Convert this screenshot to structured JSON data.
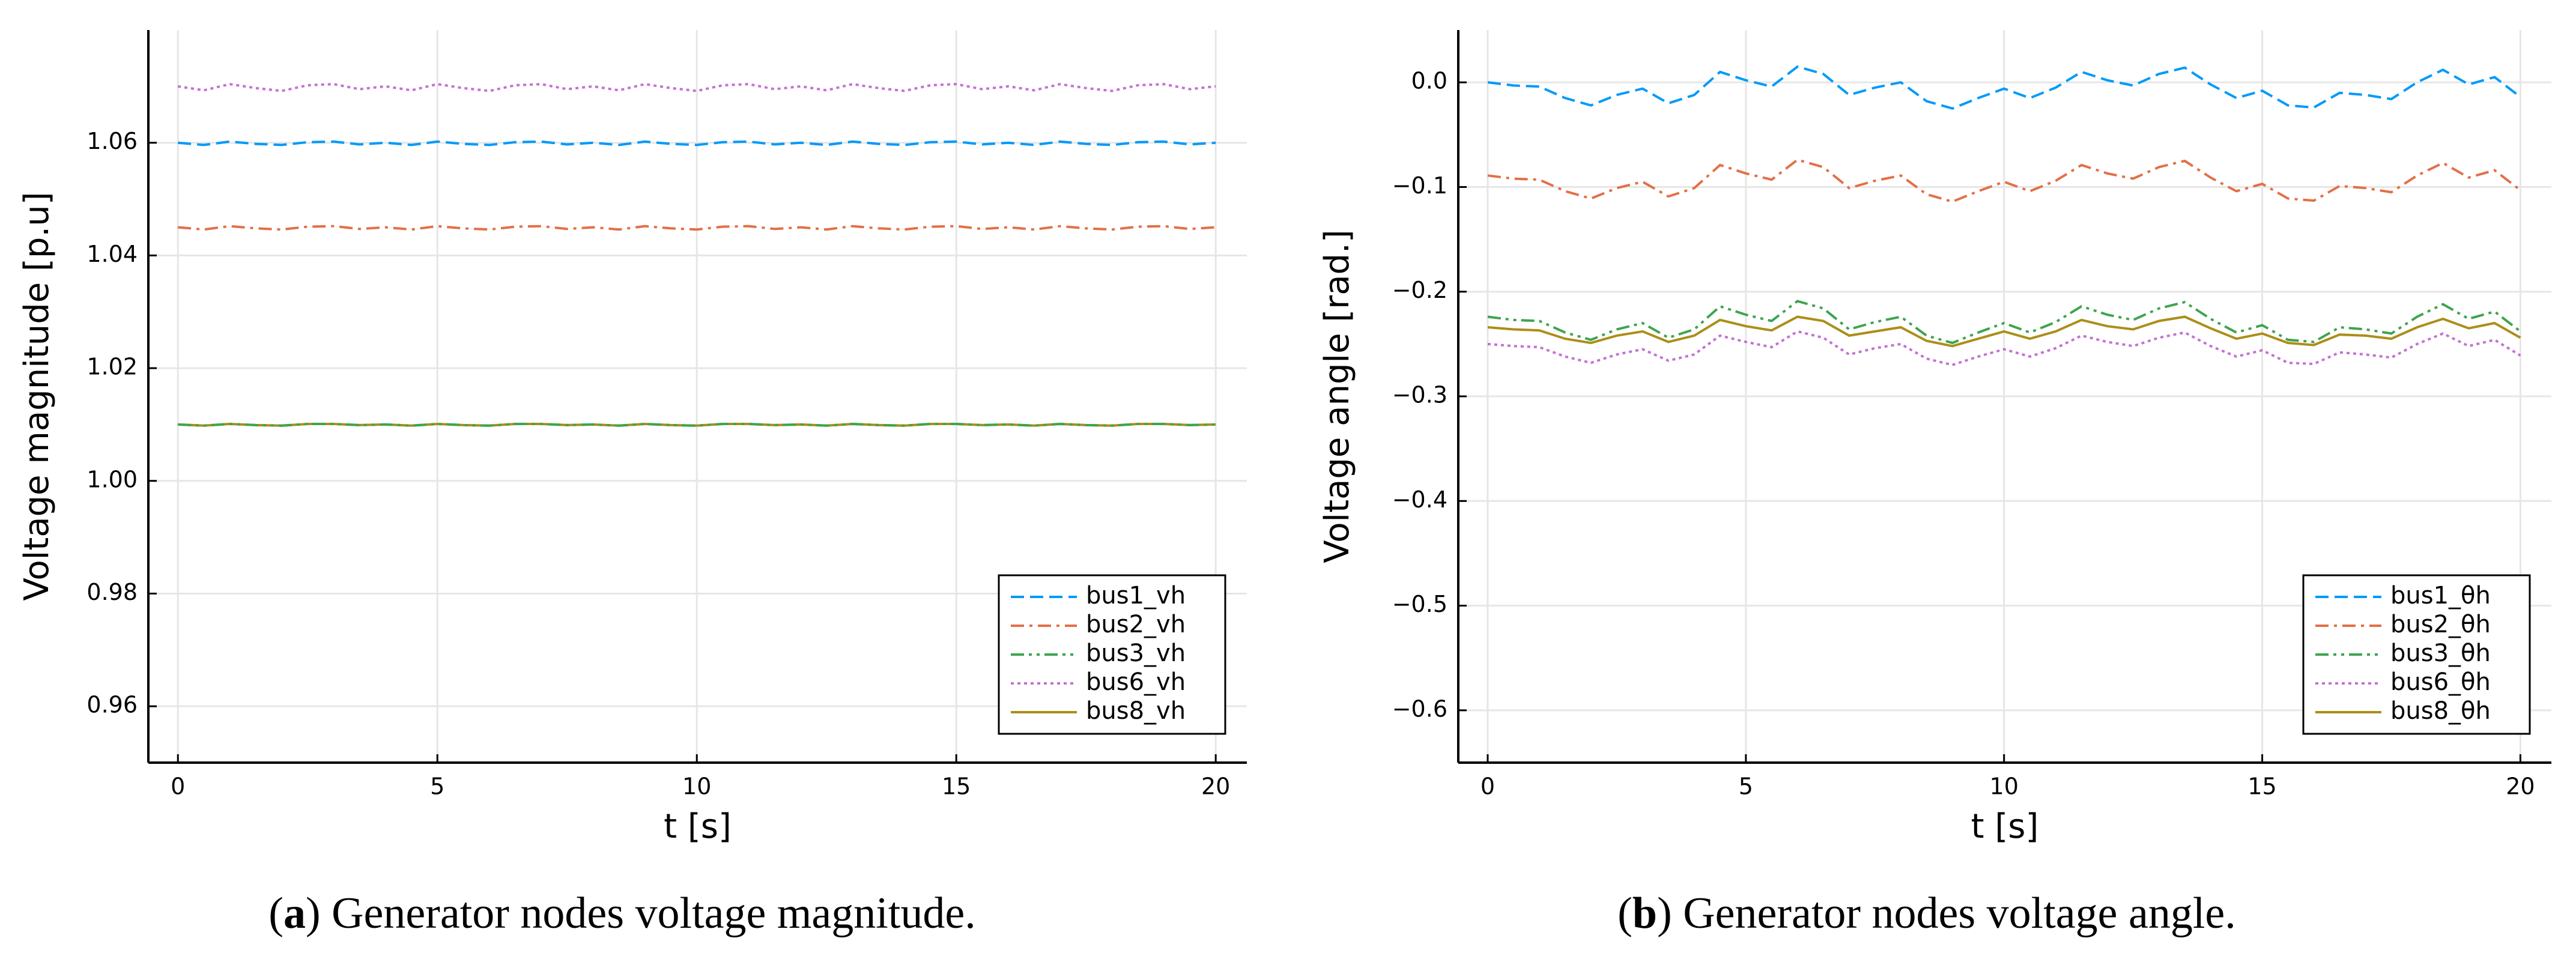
{
  "chart_data": [
    {
      "type": "line",
      "caption_parts": [
        "(",
        "a",
        ") Generator nodes voltage magnitude."
      ],
      "xlabel": "t [s]",
      "ylabel": "Voltage magnitude [p.u]",
      "x": [
        0,
        0.5,
        1,
        1.5,
        2,
        2.5,
        3,
        3.5,
        4,
        4.5,
        5,
        5.5,
        6,
        6.5,
        7,
        7.5,
        8,
        8.5,
        9,
        9.5,
        10,
        10.5,
        11,
        11.5,
        12,
        12.5,
        13,
        13.5,
        14,
        14.5,
        15,
        15.5,
        16,
        16.5,
        17,
        17.5,
        18,
        18.5,
        19,
        19.5,
        20
      ],
      "xlim": [
        -0.57,
        20.6
      ],
      "xticks": [
        0,
        5,
        10,
        15,
        20
      ],
      "ylim": [
        0.95,
        1.08
      ],
      "yticks": [
        0.96,
        0.98,
        {
          "value": 1,
          "label": "1.00"
        },
        1.02,
        1.04,
        1.06
      ],
      "grid": true,
      "legend": "bottom right",
      "series": [
        {
          "name": "bus1_vh",
          "color": "#009AFA",
          "dash": "dash",
          "values": [
            1.06,
            1.0596,
            1.0602,
            1.0598,
            1.0596,
            1.0601,
            1.0602,
            1.0597,
            1.06,
            1.0596,
            1.0602,
            1.0598,
            1.0596,
            1.0601,
            1.0602,
            1.0597,
            1.06,
            1.0596,
            1.0602,
            1.0598,
            1.0596,
            1.0601,
            1.0602,
            1.0597,
            1.06,
            1.0596,
            1.0602,
            1.0598,
            1.0596,
            1.0601,
            1.0602,
            1.0597,
            1.06,
            1.0596,
            1.0602,
            1.0598,
            1.0596,
            1.0601,
            1.0602,
            1.0597,
            1.06
          ]
        },
        {
          "name": "bus2_vh",
          "color": "#E36F47",
          "dash": "dashdot",
          "values": [
            1.045,
            1.0446,
            1.0452,
            1.0448,
            1.0446,
            1.0451,
            1.0452,
            1.0447,
            1.045,
            1.0446,
            1.0452,
            1.0448,
            1.0446,
            1.0451,
            1.0452,
            1.0447,
            1.045,
            1.0446,
            1.0452,
            1.0448,
            1.0446,
            1.0451,
            1.0452,
            1.0447,
            1.045,
            1.0446,
            1.0452,
            1.0448,
            1.0446,
            1.0451,
            1.0452,
            1.0447,
            1.045,
            1.0446,
            1.0452,
            1.0448,
            1.0446,
            1.0451,
            1.0452,
            1.0447,
            1.045
          ]
        },
        {
          "name": "bus3_vh",
          "color": "#3EA44E",
          "dash": "dashdotdot",
          "values": [
            1.01,
            1.0098,
            1.0101,
            1.0099,
            1.0098,
            1.0101,
            1.0101,
            1.0099,
            1.01,
            1.0098,
            1.0101,
            1.0099,
            1.0098,
            1.0101,
            1.0101,
            1.0099,
            1.01,
            1.0098,
            1.0101,
            1.0099,
            1.0098,
            1.0101,
            1.0101,
            1.0099,
            1.01,
            1.0098,
            1.0101,
            1.0099,
            1.0098,
            1.0101,
            1.0101,
            1.0099,
            1.01,
            1.0098,
            1.0101,
            1.0099,
            1.0098,
            1.0101,
            1.0101,
            1.0099,
            1.01
          ]
        },
        {
          "name": "bus6_vh",
          "color": "#C371D2",
          "dash": "dot",
          "values": [
            1.07,
            1.0693,
            1.0704,
            1.0697,
            1.0692,
            1.0702,
            1.0704,
            1.0695,
            1.07,
            1.0693,
            1.0704,
            1.0697,
            1.0692,
            1.0702,
            1.0704,
            1.0695,
            1.07,
            1.0693,
            1.0704,
            1.0697,
            1.0692,
            1.0702,
            1.0704,
            1.0695,
            1.07,
            1.0693,
            1.0704,
            1.0697,
            1.0692,
            1.0702,
            1.0704,
            1.0695,
            1.07,
            1.0693,
            1.0704,
            1.0697,
            1.0692,
            1.0702,
            1.0704,
            1.0695,
            1.07
          ]
        },
        {
          "name": "bus8_vh",
          "color": "#AC8E18",
          "dash": "solid",
          "values": [
            1.01,
            1.0098,
            1.0101,
            1.0099,
            1.0098,
            1.0101,
            1.0101,
            1.0099,
            1.01,
            1.0098,
            1.0101,
            1.0099,
            1.0098,
            1.0101,
            1.0101,
            1.0099,
            1.01,
            1.0098,
            1.0101,
            1.0099,
            1.0098,
            1.0101,
            1.0101,
            1.0099,
            1.01,
            1.0098,
            1.0101,
            1.0099,
            1.0098,
            1.0101,
            1.0101,
            1.0099,
            1.01,
            1.0098,
            1.0101,
            1.0099,
            1.0098,
            1.0101,
            1.0101,
            1.0099,
            1.01
          ]
        }
      ]
    },
    {
      "type": "line",
      "caption_parts": [
        "(",
        "b",
        ") Generator nodes voltage angle."
      ],
      "xlabel": "t [s]",
      "ylabel": "Voltage angle [rad.]",
      "x": [
        0,
        0.5,
        1,
        1.5,
        2,
        2.5,
        3,
        3.5,
        4,
        4.5,
        5,
        5.5,
        6,
        6.5,
        7,
        7.5,
        8,
        8.5,
        9,
        9.5,
        10,
        10.5,
        11,
        11.5,
        12,
        12.5,
        13,
        13.5,
        14,
        14.5,
        15,
        15.5,
        16,
        16.5,
        17,
        17.5,
        18,
        18.5,
        19,
        19.5,
        20
      ],
      "xlim": [
        -0.57,
        20.6
      ],
      "xticks": [
        0,
        5,
        10,
        15,
        20
      ],
      "ylim": [
        -0.65,
        0.05
      ],
      "yticks": [
        {
          "value": -0.6,
          "label": "−0.6"
        },
        {
          "value": -0.5,
          "label": "−0.5"
        },
        {
          "value": -0.4,
          "label": "−0.4"
        },
        {
          "value": -0.3,
          "label": "−0.3"
        },
        {
          "value": -0.2,
          "label": "−0.2"
        },
        {
          "value": -0.1,
          "label": "−0.1"
        },
        {
          "value": 0,
          "label": "0.0"
        }
      ],
      "grid": true,
      "legend": "bottom right",
      "series": [
        {
          "name": "bus1_θh",
          "color": "#009AFA",
          "dash": "dash",
          "values": [
            0.0,
            -0.003,
            -0.004,
            -0.015,
            -0.022,
            -0.012,
            -0.006,
            -0.02,
            -0.012,
            0.01,
            0.002,
            -0.004,
            0.015,
            0.008,
            -0.012,
            -0.005,
            0.0,
            -0.018,
            -0.025,
            -0.015,
            -0.006,
            -0.015,
            -0.005,
            0.01,
            0.002,
            -0.003,
            0.008,
            0.014,
            -0.002,
            -0.015,
            -0.008,
            -0.022,
            -0.024,
            -0.01,
            -0.012,
            -0.016,
            0.0,
            0.012,
            -0.002,
            0.005,
            -0.014
          ]
        },
        {
          "name": "bus2_θh",
          "color": "#E36F47",
          "dash": "dashdot",
          "values": [
            -0.089,
            -0.092,
            -0.093,
            -0.104,
            -0.111,
            -0.101,
            -0.095,
            -0.109,
            -0.101,
            -0.079,
            -0.087,
            -0.093,
            -0.074,
            -0.081,
            -0.101,
            -0.094,
            -0.089,
            -0.107,
            -0.114,
            -0.104,
            -0.095,
            -0.104,
            -0.094,
            -0.079,
            -0.087,
            -0.092,
            -0.081,
            -0.075,
            -0.091,
            -0.104,
            -0.097,
            -0.111,
            -0.113,
            -0.099,
            -0.101,
            -0.105,
            -0.089,
            -0.077,
            -0.091,
            -0.084,
            -0.103
          ]
        },
        {
          "name": "bus3_θh",
          "color": "#3EA44E",
          "dash": "dashdotdot",
          "values": [
            -0.224,
            -0.227,
            -0.228,
            -0.239,
            -0.246,
            -0.236,
            -0.23,
            -0.244,
            -0.236,
            -0.214,
            -0.222,
            -0.228,
            -0.209,
            -0.216,
            -0.236,
            -0.229,
            -0.224,
            -0.242,
            -0.249,
            -0.239,
            -0.23,
            -0.239,
            -0.229,
            -0.214,
            -0.222,
            -0.227,
            -0.216,
            -0.21,
            -0.226,
            -0.239,
            -0.232,
            -0.246,
            -0.248,
            -0.234,
            -0.236,
            -0.24,
            -0.224,
            -0.212,
            -0.226,
            -0.219,
            -0.238
          ]
        },
        {
          "name": "bus6_θh",
          "color": "#C371D2",
          "dash": "dot",
          "values": [
            -0.25,
            -0.252,
            -0.253,
            -0.262,
            -0.268,
            -0.26,
            -0.255,
            -0.266,
            -0.26,
            -0.242,
            -0.248,
            -0.253,
            -0.238,
            -0.244,
            -0.26,
            -0.254,
            -0.25,
            -0.264,
            -0.27,
            -0.262,
            -0.255,
            -0.262,
            -0.254,
            -0.242,
            -0.248,
            -0.252,
            -0.244,
            -0.239,
            -0.252,
            -0.262,
            -0.256,
            -0.268,
            -0.269,
            -0.258,
            -0.26,
            -0.263,
            -0.25,
            -0.24,
            -0.252,
            -0.246,
            -0.261
          ]
        },
        {
          "name": "bus8_θh",
          "color": "#AC8E18",
          "dash": "solid",
          "values": [
            -0.234,
            -0.236,
            -0.237,
            -0.245,
            -0.249,
            -0.242,
            -0.238,
            -0.248,
            -0.242,
            -0.227,
            -0.233,
            -0.237,
            -0.224,
            -0.228,
            -0.242,
            -0.238,
            -0.234,
            -0.247,
            -0.252,
            -0.245,
            -0.238,
            -0.245,
            -0.238,
            -0.227,
            -0.233,
            -0.236,
            -0.228,
            -0.224,
            -0.235,
            -0.245,
            -0.24,
            -0.249,
            -0.251,
            -0.241,
            -0.242,
            -0.245,
            -0.234,
            -0.226,
            -0.235,
            -0.23,
            -0.244
          ]
        }
      ]
    }
  ]
}
